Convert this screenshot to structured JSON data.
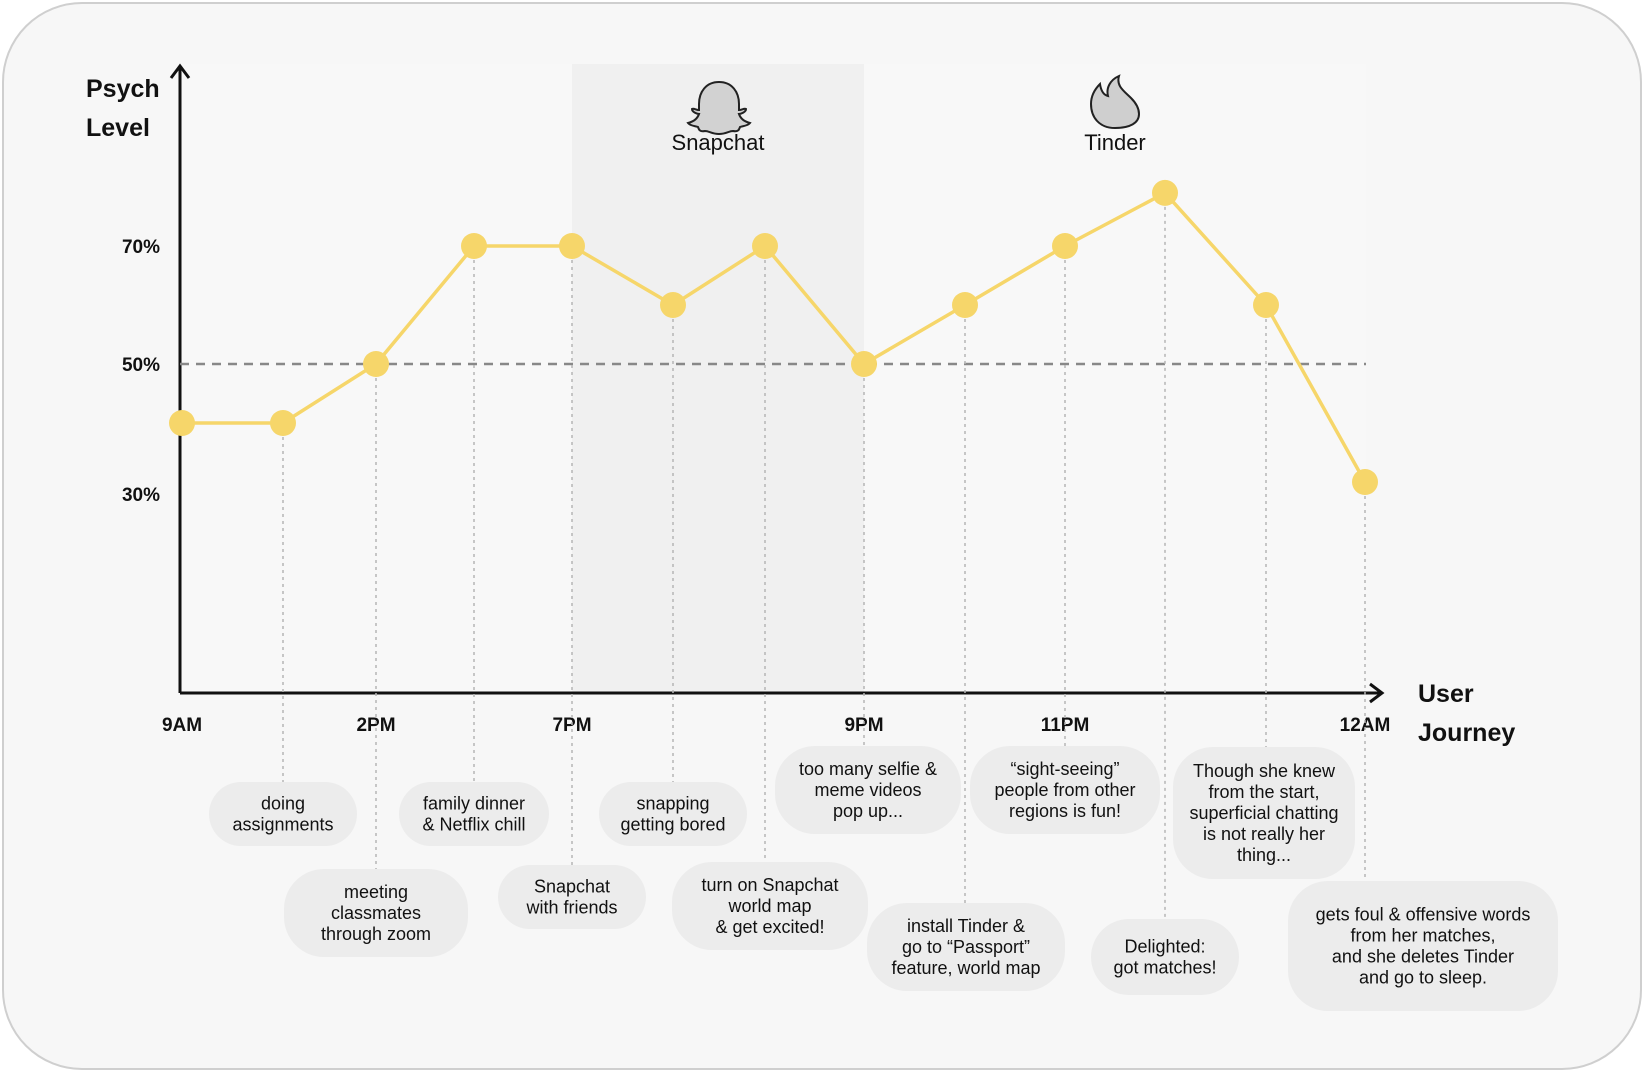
{
  "chart_data": {
    "type": "line",
    "xlabel": [
      "User",
      "Journey"
    ],
    "ylabel": [
      "Psych",
      "Level"
    ],
    "y_ticks": [
      "70%",
      "50%",
      "30%"
    ],
    "x_ticks": [
      "9AM",
      "2PM",
      "7PM",
      "9PM",
      "11PM",
      "12AM"
    ],
    "reference_line": {
      "value": 50,
      "style": "dashed"
    },
    "bands": [
      {
        "label": "Snapchat",
        "icon": "snapchat-ghost-icon"
      },
      {
        "label": "Tinder",
        "icon": "tinder-flame-icon"
      }
    ],
    "series": [
      {
        "color": "#f6d66a",
        "points": [
          {
            "y": 40,
            "tick": "9AM",
            "note": ""
          },
          {
            "y": 40,
            "note": [
              "doing",
              "assignments"
            ]
          },
          {
            "y": 50,
            "tick": "2PM",
            "note": [
              "meeting",
              "classmates",
              "through zoom"
            ]
          },
          {
            "y": 70,
            "note": [
              "family dinner",
              "& Netflix chill"
            ]
          },
          {
            "y": 70,
            "tick": "7PM",
            "note": [
              "Snapchat",
              "with friends"
            ]
          },
          {
            "y": 60,
            "note": [
              "snapping",
              "getting bored"
            ]
          },
          {
            "y": 70,
            "note": [
              "turn on Snapchat",
              "world map",
              "& get excited!"
            ]
          },
          {
            "y": 50,
            "tick": "9PM",
            "note": [
              "too many selfie &",
              "meme videos",
              "pop up..."
            ]
          },
          {
            "y": 60,
            "note": [
              "install Tinder &",
              "go to “Passport”",
              "feature, world map"
            ]
          },
          {
            "y": 70,
            "tick": "11PM",
            "note": [
              "“sight-seeing”",
              "people from other",
              "regions is fun!"
            ]
          },
          {
            "y": 79,
            "note": [
              "Delighted:",
              "got matches!"
            ]
          },
          {
            "y": 60,
            "note": [
              "Though she knew",
              "from the start,",
              "superficial chatting",
              "is not really her",
              "thing..."
            ]
          },
          {
            "y": 30,
            "tick": "12AM",
            "note": [
              "gets foul & offensive words",
              "from her matches,",
              "and she deletes Tinder",
              "and go to sleep."
            ]
          }
        ]
      }
    ],
    "colors": {
      "line": "#f6d66a",
      "axis": "#111111",
      "reference": "#888888",
      "band": "#f0f0f0",
      "bubble": "#ececec"
    }
  }
}
